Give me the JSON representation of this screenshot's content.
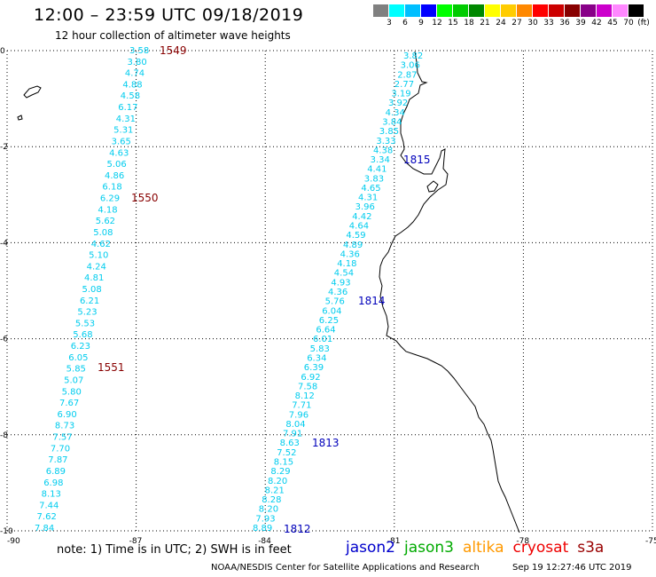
{
  "title": "12:00 – 23:59 UTC 09/18/2019",
  "subtitle": "12 hour collection of altimeter wave heights",
  "colorbar": {
    "unit": "(ft)",
    "colors": [
      "#808080",
      "#00ffff",
      "#00bfff",
      "#0000ff",
      "#00ff00",
      "#00cc00",
      "#008800",
      "#ffff00",
      "#ffcc00",
      "#ff8800",
      "#ff0000",
      "#cc0000",
      "#880000",
      "#880088",
      "#cc00cc",
      "#ff88ff",
      "#000000"
    ],
    "labels": [
      "3",
      "6",
      "9",
      "12",
      "15",
      "18",
      "21",
      "24",
      "27",
      "30",
      "33",
      "36",
      "39",
      "42",
      "45",
      "70"
    ]
  },
  "axes": {
    "lon_ticks": [
      "-90",
      "-87",
      "-84",
      "-81",
      "-78",
      "-75"
    ],
    "lat_ticks": [
      "0",
      "-2",
      "-4",
      "-6",
      "-8",
      "-10"
    ]
  },
  "tracks": [
    {
      "name": "track-1549-1551",
      "color": "#00ccee",
      "time_labels": [
        {
          "text": "1549",
          "color": "#880000"
        },
        {
          "text": "1550",
          "color": "#880000"
        },
        {
          "text": "1551",
          "color": "#880000"
        }
      ],
      "values": [
        "3.58",
        "3.80",
        "4.74",
        "4.88",
        "4.58",
        "6.17",
        "4.31",
        "5.31",
        "3.65",
        "4.63",
        "5.06",
        "4.86",
        "6.18",
        "6.29",
        "4.18",
        "5.62",
        "5.08",
        "4.62",
        "5.10",
        "4.24",
        "4.81",
        "5.08",
        "6.21",
        "5.23",
        "5.53",
        "5.68",
        "6.23",
        "6.05",
        "5.85",
        "5.07",
        "5.80",
        "7.67",
        "6.90",
        "8.73",
        "7.57",
        "7.70",
        "7.87",
        "6.89",
        "6.98",
        "8.13",
        "7.44",
        "7.62",
        "7.84"
      ]
    },
    {
      "name": "track-1812-1815",
      "color": "#00ccee",
      "time_labels": [
        {
          "text": "1815",
          "color": "#0000bb"
        },
        {
          "text": "1814",
          "color": "#0000bb"
        },
        {
          "text": "1813",
          "color": "#0000bb"
        },
        {
          "text": "1812",
          "color": "#0000bb"
        }
      ],
      "values": [
        "3.82",
        "3.06",
        "2.87",
        "2.77",
        "3.19",
        "3.92",
        "4.34",
        "3.84",
        "3.85",
        "3.33",
        "4.38",
        "3.34",
        "4.41",
        "3.83",
        "4.65",
        "4.31",
        "3.96",
        "4.42",
        "4.64",
        "4.59",
        "4.89",
        "4.36",
        "4.18",
        "4.54",
        "4.93",
        "4.36",
        "5.76",
        "6.04",
        "6.25",
        "6.64",
        "6.01",
        "5.83",
        "6.34",
        "6.39",
        "6.92",
        "7.58",
        "8.12",
        "7.71",
        "7.96",
        "8.04",
        "7.91",
        "8.63",
        "7.52",
        "8.15",
        "8.29",
        "8.20",
        "8.21",
        "8.28",
        "8.20",
        "7.93",
        "8.89"
      ]
    }
  ],
  "note": "note: 1) Time is in UTC; 2) SWH is in feet",
  "satellites": [
    {
      "name": "jason2",
      "color": "#0000cc"
    },
    {
      "name": "jason3",
      "color": "#00aa00"
    },
    {
      "name": "altika",
      "color": "#ff9900"
    },
    {
      "name": "cryosat",
      "color": "#ee0000"
    },
    {
      "name": "s3a",
      "color": "#990000"
    }
  ],
  "credit": "NOAA/NESDIS Center for Satellite Applications and Research",
  "timestamp": "Sep 19 12:27:46 UTC 2019"
}
